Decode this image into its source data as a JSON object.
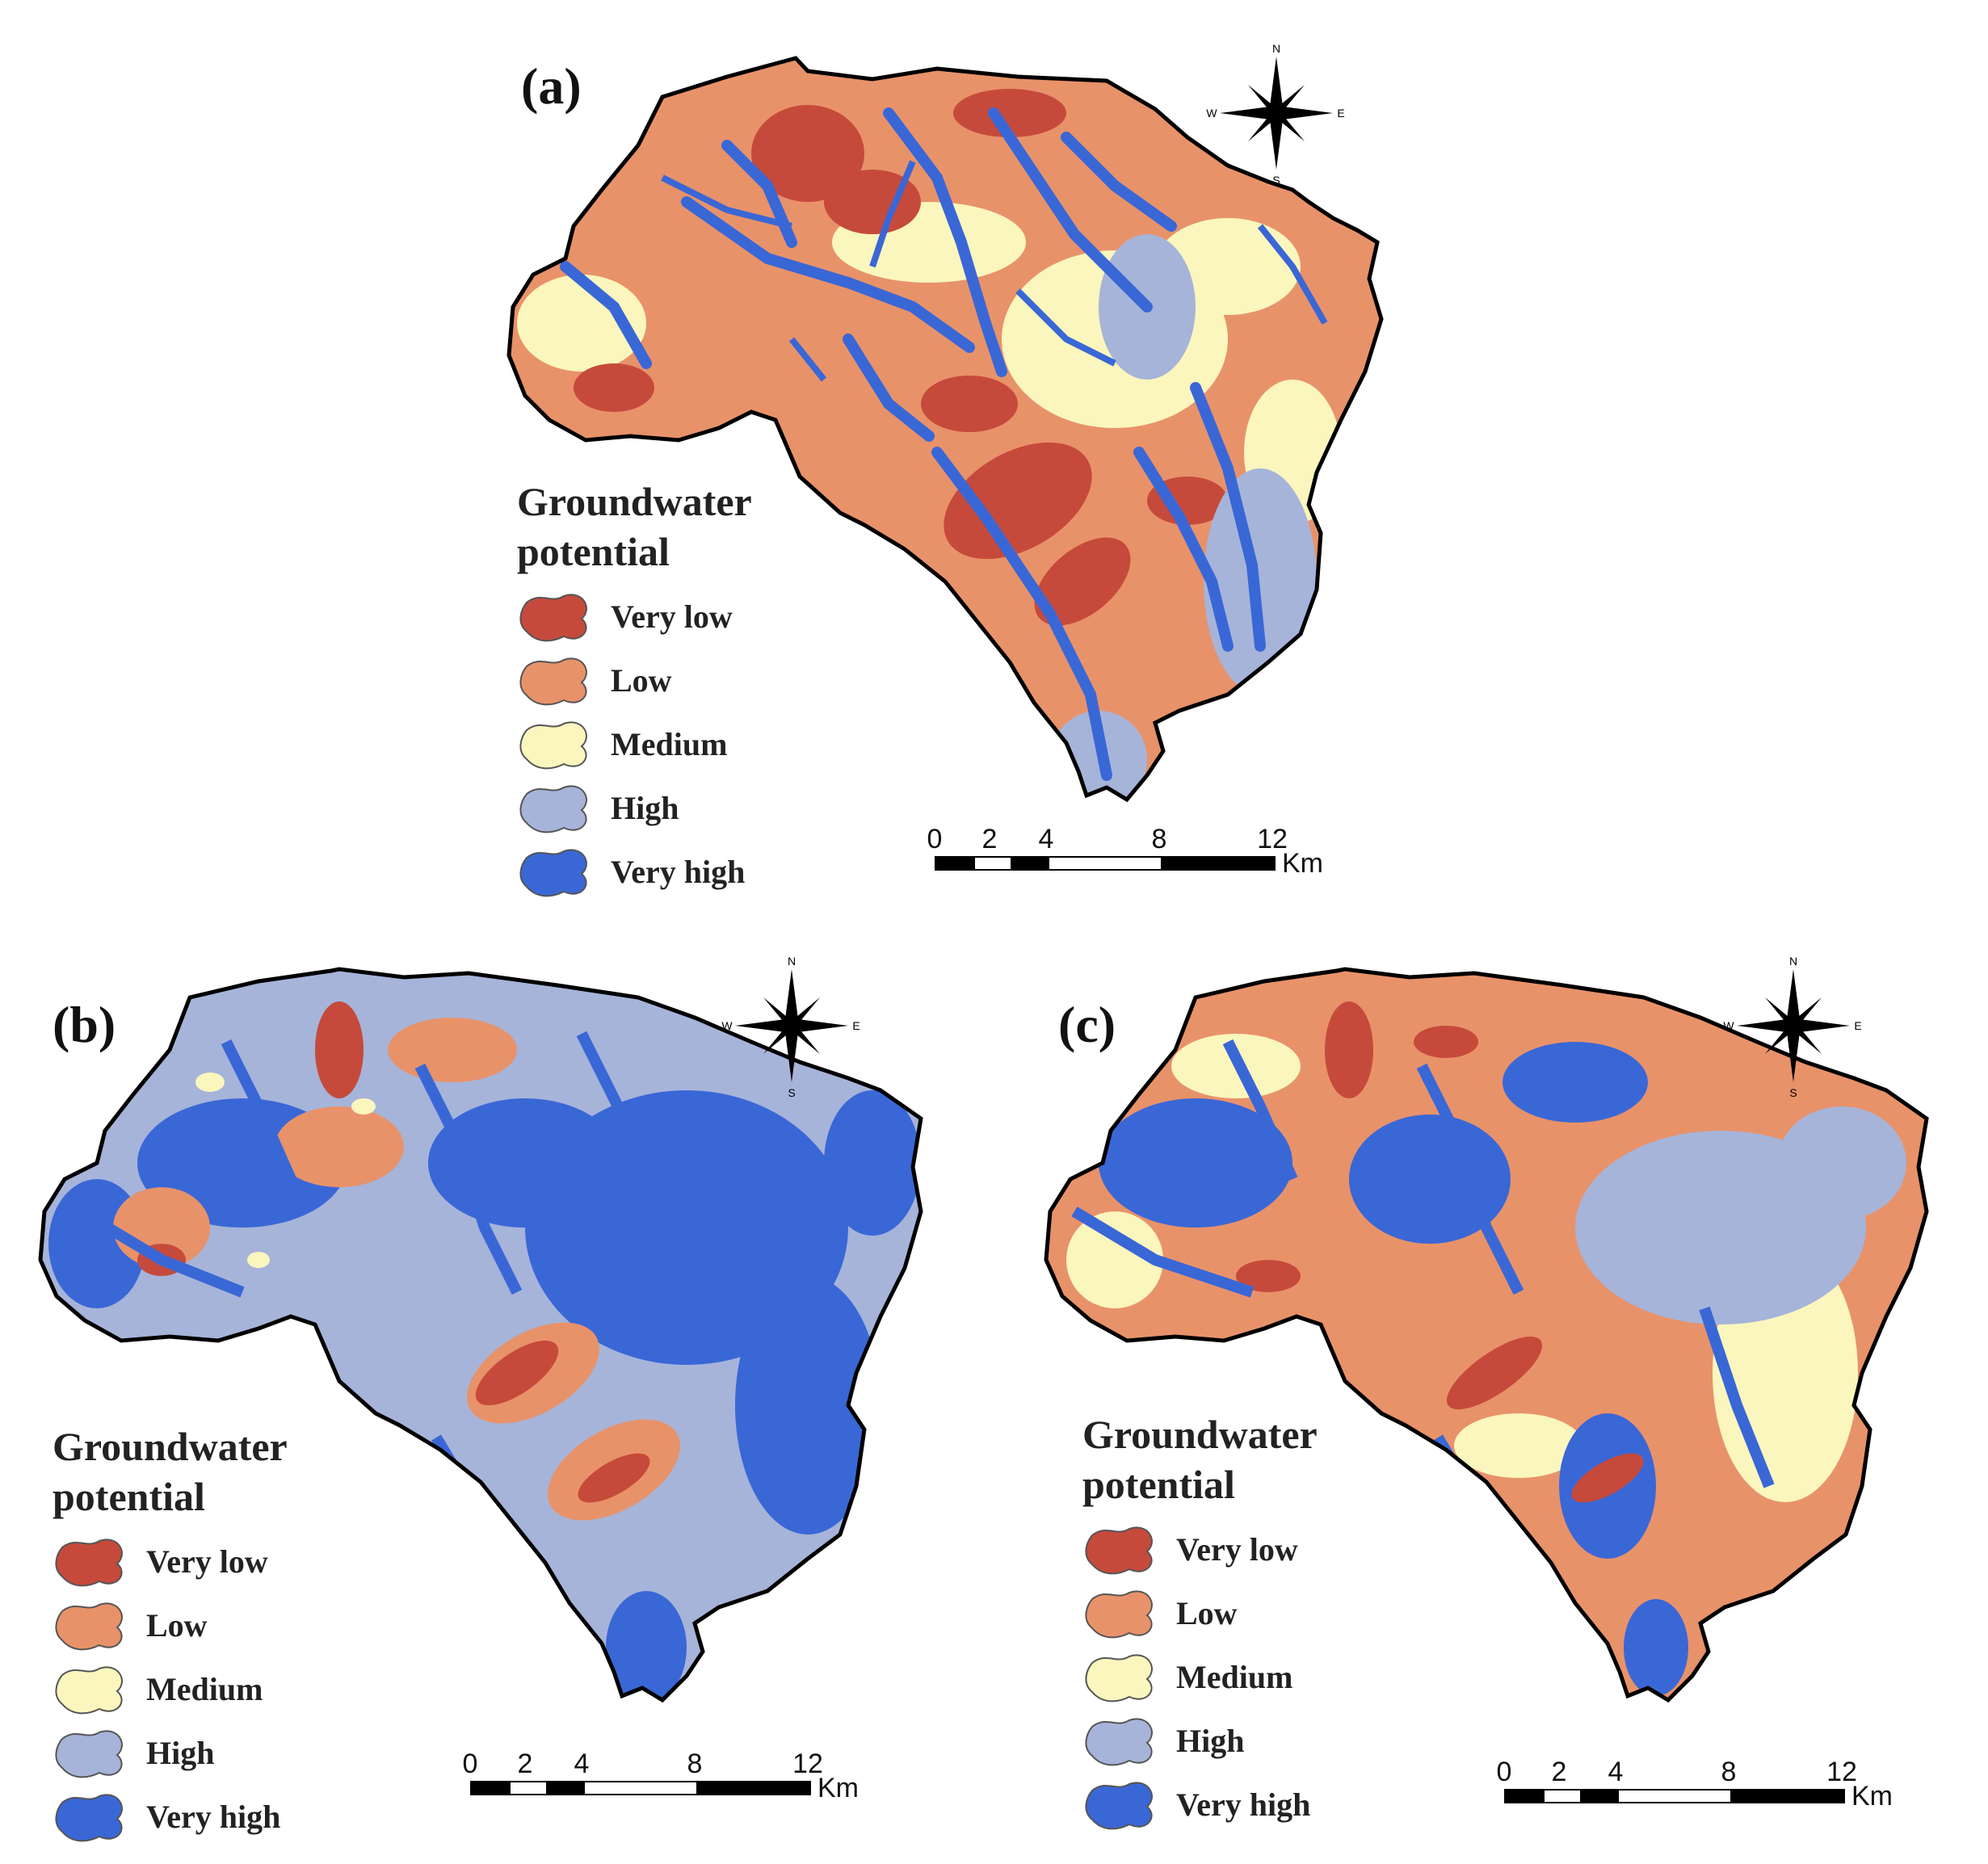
{
  "panels": [
    {
      "id": "a",
      "label": "(a)"
    },
    {
      "id": "b",
      "label": "(b)"
    },
    {
      "id": "c",
      "label": "(c)"
    }
  ],
  "legend": {
    "title_line1": "Groundwater",
    "title_line2": "potential",
    "classes": [
      {
        "label": "Very low",
        "color": "#c64a3b"
      },
      {
        "label": "Low",
        "color": "#e8926a"
      },
      {
        "label": "Medium",
        "color": "#fbf6bd"
      },
      {
        "label": "High",
        "color": "#a6b4d9"
      },
      {
        "label": "Very high",
        "color": "#3a67d6"
      }
    ]
  },
  "scalebar": {
    "ticks": [
      "0",
      "2",
      "4",
      "8",
      "12"
    ],
    "unit": "Km"
  },
  "compass": {
    "n": "N",
    "s": "S",
    "e": "E",
    "w": "W"
  },
  "colors": {
    "outline": "#000000",
    "background": "#ffffff"
  }
}
